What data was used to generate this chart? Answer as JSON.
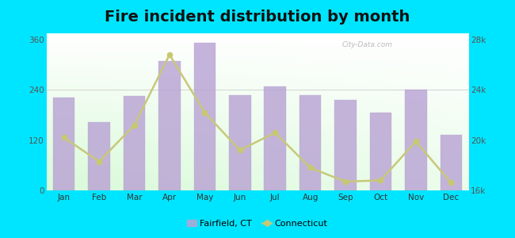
{
  "title": "Fire incident distribution by month",
  "months": [
    "Jan",
    "Feb",
    "Mar",
    "Apr",
    "May",
    "Jun",
    "Jul",
    "Aug",
    "Sep",
    "Oct",
    "Nov",
    "Dec"
  ],
  "fairfield_values": [
    222,
    162,
    225,
    308,
    352,
    228,
    248,
    228,
    215,
    185,
    240,
    132
  ],
  "connecticut_values": [
    20200,
    18300,
    21200,
    26800,
    22200,
    19200,
    20600,
    17800,
    16700,
    16800,
    19900,
    16600
  ],
  "bar_color": "#b9a3d4",
  "line_color": "#c8c87a",
  "line_marker_color": "#c8c870",
  "background_outer": "#00e5ff",
  "ylim_left": [
    0,
    375
  ],
  "ylim_right": [
    16000,
    28500
  ],
  "yticks_left": [
    0,
    120,
    240,
    360
  ],
  "yticks_right": [
    16000,
    20000,
    24000,
    28000
  ],
  "ytick_labels_right": [
    "16k",
    "20k",
    "24k",
    "28k"
  ],
  "title_fontsize": 14,
  "watermark": "City-Data.com"
}
